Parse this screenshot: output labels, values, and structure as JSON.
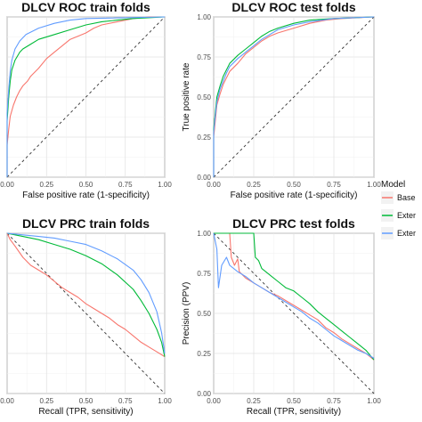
{
  "legend": {
    "title": "Model",
    "items": [
      {
        "label": "Base",
        "color": "#F8766D"
      },
      {
        "label": "Exter",
        "color": "#00BA38"
      },
      {
        "label": "Exter",
        "color": "#619CFF"
      }
    ]
  },
  "chart_data": [
    {
      "type": "line",
      "title": "DLCV ROC train folds",
      "xlabel": "False positive rate (1-specificity)",
      "ylabel": "",
      "xlim": [
        0,
        1
      ],
      "ylim": [
        0,
        1
      ],
      "xticks": [
        "0.00",
        "0.25",
        "0.50",
        "0.75",
        "1.00"
      ],
      "yticks": [],
      "reference_line": "diagonal-up",
      "grid": true,
      "series": [
        {
          "color": "#F8766D",
          "points": [
            [
              0,
              0
            ],
            [
              0,
              0.2
            ],
            [
              0.01,
              0.3
            ],
            [
              0.02,
              0.38
            ],
            [
              0.04,
              0.45
            ],
            [
              0.06,
              0.5
            ],
            [
              0.08,
              0.54
            ],
            [
              0.1,
              0.57
            ],
            [
              0.13,
              0.6
            ],
            [
              0.15,
              0.63
            ],
            [
              0.2,
              0.68
            ],
            [
              0.25,
              0.74
            ],
            [
              0.3,
              0.78
            ],
            [
              0.35,
              0.82
            ],
            [
              0.4,
              0.86
            ],
            [
              0.45,
              0.88
            ],
            [
              0.5,
              0.9
            ],
            [
              0.55,
              0.93
            ],
            [
              0.6,
              0.95
            ],
            [
              0.7,
              0.97
            ],
            [
              0.8,
              0.99
            ],
            [
              0.9,
              1.0
            ],
            [
              1,
              1
            ]
          ]
        },
        {
          "color": "#00BA38",
          "points": [
            [
              0,
              0
            ],
            [
              0,
              0.35
            ],
            [
              0.01,
              0.5
            ],
            [
              0.02,
              0.6
            ],
            [
              0.03,
              0.67
            ],
            [
              0.05,
              0.73
            ],
            [
              0.08,
              0.78
            ],
            [
              0.1,
              0.8
            ],
            [
              0.15,
              0.83
            ],
            [
              0.2,
              0.86
            ],
            [
              0.3,
              0.89
            ],
            [
              0.4,
              0.92
            ],
            [
              0.5,
              0.95
            ],
            [
              0.6,
              0.97
            ],
            [
              0.7,
              0.98
            ],
            [
              0.8,
              0.99
            ],
            [
              1,
              1
            ]
          ]
        },
        {
          "color": "#619CFF",
          "points": [
            [
              0,
              0
            ],
            [
              0,
              0.4
            ],
            [
              0.01,
              0.55
            ],
            [
              0.02,
              0.66
            ],
            [
              0.03,
              0.73
            ],
            [
              0.05,
              0.8
            ],
            [
              0.08,
              0.85
            ],
            [
              0.12,
              0.89
            ],
            [
              0.2,
              0.93
            ],
            [
              0.3,
              0.96
            ],
            [
              0.4,
              0.98
            ],
            [
              0.5,
              0.99
            ],
            [
              1,
              1
            ]
          ]
        }
      ]
    },
    {
      "type": "line",
      "title": "DLCV ROC test folds",
      "xlabel": "False positive rate (1-specificity)",
      "ylabel": "True positive rate",
      "xlim": [
        0,
        1
      ],
      "ylim": [
        0,
        1
      ],
      "xticks": [
        "0.00",
        "0.25",
        "0.50",
        "0.75",
        "1.00"
      ],
      "yticks": [
        "0.00",
        "0.25",
        "0.50",
        "0.75",
        "1.00"
      ],
      "reference_line": "diagonal-up",
      "grid": true,
      "series": [
        {
          "color": "#F8766D",
          "points": [
            [
              0,
              0
            ],
            [
              0,
              0.25
            ],
            [
              0.01,
              0.35
            ],
            [
              0.02,
              0.45
            ],
            [
              0.04,
              0.52
            ],
            [
              0.06,
              0.58
            ],
            [
              0.08,
              0.62
            ],
            [
              0.1,
              0.66
            ],
            [
              0.15,
              0.71
            ],
            [
              0.2,
              0.77
            ],
            [
              0.25,
              0.81
            ],
            [
              0.3,
              0.85
            ],
            [
              0.35,
              0.88
            ],
            [
              0.4,
              0.9
            ],
            [
              0.5,
              0.93
            ],
            [
              0.6,
              0.96
            ],
            [
              0.7,
              0.98
            ],
            [
              0.8,
              0.99
            ],
            [
              1,
              1
            ]
          ]
        },
        {
          "color": "#00BA38",
          "points": [
            [
              0,
              0
            ],
            [
              0,
              0.3
            ],
            [
              0.01,
              0.4
            ],
            [
              0.02,
              0.5
            ],
            [
              0.04,
              0.57
            ],
            [
              0.06,
              0.63
            ],
            [
              0.08,
              0.67
            ],
            [
              0.1,
              0.71
            ],
            [
              0.15,
              0.76
            ],
            [
              0.2,
              0.8
            ],
            [
              0.25,
              0.84
            ],
            [
              0.3,
              0.88
            ],
            [
              0.35,
              0.91
            ],
            [
              0.4,
              0.93
            ],
            [
              0.5,
              0.96
            ],
            [
              0.6,
              0.98
            ],
            [
              0.75,
              0.99
            ],
            [
              1,
              1
            ]
          ]
        },
        {
          "color": "#619CFF",
          "points": [
            [
              0,
              0
            ],
            [
              0,
              0.28
            ],
            [
              0.01,
              0.38
            ],
            [
              0.02,
              0.47
            ],
            [
              0.04,
              0.55
            ],
            [
              0.06,
              0.6
            ],
            [
              0.08,
              0.65
            ],
            [
              0.1,
              0.69
            ],
            [
              0.15,
              0.74
            ],
            [
              0.2,
              0.78
            ],
            [
              0.25,
              0.82
            ],
            [
              0.3,
              0.86
            ],
            [
              0.35,
              0.89
            ],
            [
              0.4,
              0.92
            ],
            [
              0.5,
              0.95
            ],
            [
              0.6,
              0.97
            ],
            [
              0.75,
              0.99
            ],
            [
              1,
              1
            ]
          ]
        }
      ]
    },
    {
      "type": "line",
      "title": "DLCV PRC train folds",
      "xlabel": "Recall (TPR, sensitivity)",
      "ylabel": "",
      "xlim": [
        0,
        1
      ],
      "ylim": [
        0,
        1
      ],
      "xticks": [
        "0.00",
        "0.25",
        "0.50",
        "0.75",
        "1.00"
      ],
      "yticks": [],
      "reference_line": "diagonal-down",
      "grid": true,
      "series": [
        {
          "color": "#F8766D",
          "points": [
            [
              0,
              1
            ],
            [
              0.02,
              0.96
            ],
            [
              0.05,
              0.92
            ],
            [
              0.1,
              0.85
            ],
            [
              0.15,
              0.8
            ],
            [
              0.2,
              0.77
            ],
            [
              0.25,
              0.74
            ],
            [
              0.3,
              0.7
            ],
            [
              0.35,
              0.66
            ],
            [
              0.4,
              0.63
            ],
            [
              0.45,
              0.6
            ],
            [
              0.5,
              0.56
            ],
            [
              0.55,
              0.53
            ],
            [
              0.6,
              0.5
            ],
            [
              0.65,
              0.47
            ],
            [
              0.7,
              0.43
            ],
            [
              0.75,
              0.4
            ],
            [
              0.8,
              0.36
            ],
            [
              0.85,
              0.32
            ],
            [
              0.9,
              0.29
            ],
            [
              0.95,
              0.26
            ],
            [
              1,
              0.23
            ]
          ]
        },
        {
          "color": "#00BA38",
          "points": [
            [
              0,
              1
            ],
            [
              0.05,
              0.99
            ],
            [
              0.1,
              0.98
            ],
            [
              0.2,
              0.96
            ],
            [
              0.3,
              0.93
            ],
            [
              0.4,
              0.9
            ],
            [
              0.5,
              0.86
            ],
            [
              0.6,
              0.81
            ],
            [
              0.7,
              0.74
            ],
            [
              0.8,
              0.65
            ],
            [
              0.85,
              0.58
            ],
            [
              0.9,
              0.5
            ],
            [
              0.95,
              0.4
            ],
            [
              0.98,
              0.32
            ],
            [
              1,
              0.23
            ]
          ]
        },
        {
          "color": "#619CFF",
          "points": [
            [
              0,
              1
            ],
            [
              0.1,
              0.99
            ],
            [
              0.2,
              0.98
            ],
            [
              0.3,
              0.97
            ],
            [
              0.4,
              0.95
            ],
            [
              0.5,
              0.93
            ],
            [
              0.6,
              0.89
            ],
            [
              0.7,
              0.84
            ],
            [
              0.8,
              0.77
            ],
            [
              0.85,
              0.71
            ],
            [
              0.9,
              0.63
            ],
            [
              0.95,
              0.51
            ],
            [
              0.98,
              0.38
            ],
            [
              1,
              0.25
            ]
          ]
        }
      ]
    },
    {
      "type": "line",
      "title": "DLCV PRC test folds",
      "xlabel": "Recall (TPR, sensitivity)",
      "ylabel": "Precision (PPV)",
      "xlim": [
        0,
        1
      ],
      "ylim": [
        0,
        1
      ],
      "xticks": [
        "0.00",
        "0.25",
        "0.50",
        "0.75",
        "1.00"
      ],
      "yticks": [
        "0.00",
        "0.25",
        "0.50",
        "0.75",
        "1.00"
      ],
      "reference_line": "diagonal-down",
      "grid": true,
      "series": [
        {
          "color": "#F8766D",
          "points": [
            [
              0,
              1
            ],
            [
              0.1,
              1
            ],
            [
              0.11,
              0.85
            ],
            [
              0.13,
              0.8
            ],
            [
              0.15,
              0.84
            ],
            [
              0.16,
              0.76
            ],
            [
              0.2,
              0.72
            ],
            [
              0.25,
              0.69
            ],
            [
              0.3,
              0.66
            ],
            [
              0.35,
              0.63
            ],
            [
              0.4,
              0.61
            ],
            [
              0.45,
              0.58
            ],
            [
              0.5,
              0.55
            ],
            [
              0.55,
              0.52
            ],
            [
              0.6,
              0.49
            ],
            [
              0.65,
              0.46
            ],
            [
              0.7,
              0.41
            ],
            [
              0.75,
              0.38
            ],
            [
              0.8,
              0.34
            ],
            [
              0.85,
              0.31
            ],
            [
              0.9,
              0.28
            ],
            [
              0.95,
              0.25
            ],
            [
              1,
              0.21
            ]
          ]
        },
        {
          "color": "#00BA38",
          "points": [
            [
              0,
              1
            ],
            [
              0.25,
              1
            ],
            [
              0.26,
              0.85
            ],
            [
              0.28,
              0.83
            ],
            [
              0.3,
              0.78
            ],
            [
              0.35,
              0.74
            ],
            [
              0.4,
              0.7
            ],
            [
              0.45,
              0.66
            ],
            [
              0.5,
              0.64
            ],
            [
              0.55,
              0.6
            ],
            [
              0.6,
              0.56
            ],
            [
              0.65,
              0.51
            ],
            [
              0.7,
              0.47
            ],
            [
              0.75,
              0.43
            ],
            [
              0.8,
              0.39
            ],
            [
              0.85,
              0.35
            ],
            [
              0.9,
              0.31
            ],
            [
              0.95,
              0.27
            ],
            [
              1,
              0.21
            ]
          ]
        },
        {
          "color": "#619CFF",
          "points": [
            [
              0,
              1
            ],
            [
              0.02,
              0.9
            ],
            [
              0.03,
              0.66
            ],
            [
              0.05,
              0.8
            ],
            [
              0.08,
              0.85
            ],
            [
              0.1,
              0.8
            ],
            [
              0.15,
              0.76
            ],
            [
              0.2,
              0.73
            ],
            [
              0.25,
              0.69
            ],
            [
              0.3,
              0.66
            ],
            [
              0.35,
              0.63
            ],
            [
              0.4,
              0.6
            ],
            [
              0.45,
              0.57
            ],
            [
              0.5,
              0.54
            ],
            [
              0.55,
              0.51
            ],
            [
              0.6,
              0.47
            ],
            [
              0.65,
              0.44
            ],
            [
              0.7,
              0.4
            ],
            [
              0.75,
              0.36
            ],
            [
              0.8,
              0.33
            ],
            [
              0.85,
              0.3
            ],
            [
              0.9,
              0.27
            ],
            [
              0.95,
              0.25
            ],
            [
              1,
              0.22
            ]
          ]
        }
      ]
    }
  ]
}
